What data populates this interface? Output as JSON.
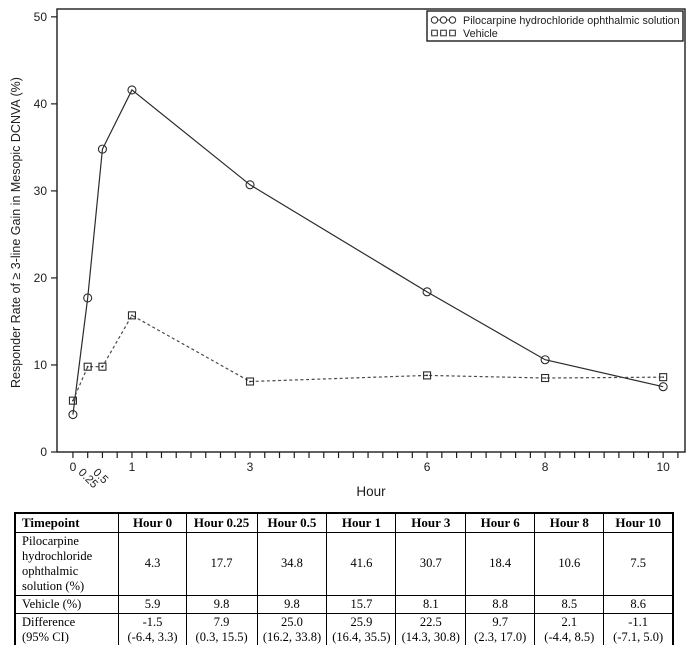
{
  "chart_data": {
    "type": "line",
    "title": "",
    "xlabel": "Hour",
    "ylabel": "Responder Rate of ≥ 3-line Gain in Mesopic DCNVA (%)",
    "x": [
      0,
      0.25,
      0.5,
      1,
      3,
      6,
      8,
      10
    ],
    "series": [
      {
        "name": "Pilocarpine hydrochloride ophthalmic solution",
        "slug": "pilocarpine",
        "marker": "circle",
        "line_style": "solid",
        "color": "#2b2b2b",
        "values": [
          4.3,
          17.7,
          34.8,
          41.6,
          30.7,
          18.4,
          10.6,
          7.5
        ]
      },
      {
        "name": "Vehicle",
        "slug": "vehicle",
        "marker": "square",
        "line_style": "dashed",
        "color": "#4a4a4a",
        "values": [
          5.9,
          9.8,
          9.8,
          15.7,
          8.1,
          8.8,
          8.5,
          8.6
        ]
      }
    ],
    "xlim": [
      -0.27,
      10.37
    ],
    "ylim": [
      0,
      50.9
    ],
    "yticks": [
      0,
      10,
      20,
      30,
      40,
      50
    ],
    "xticks_labeled": [
      0,
      0.25,
      0.5,
      1,
      3,
      6,
      8,
      10
    ],
    "xticks_rotated": [
      0.25,
      0.5
    ],
    "xtick_minor_step": 0.25,
    "xtick_minor_max": 10.25,
    "legend_position": "top-right",
    "grid": false,
    "axis_color": "#1d1d1d"
  },
  "table": {
    "headers": [
      "Timepoint",
      "Hour 0",
      "Hour 0.25",
      "Hour 0.5",
      "Hour 1",
      "Hour 3",
      "Hour 6",
      "Hour 8",
      "Hour 10"
    ],
    "rows": [
      {
        "label": "Pilocarpine hydrochloride ophthalmic solution (%)",
        "values": [
          "4.3",
          "17.7",
          "34.8",
          "41.6",
          "30.7",
          "18.4",
          "10.6",
          "7.5"
        ]
      },
      {
        "label": "Vehicle (%)",
        "values": [
          "5.9",
          "9.8",
          "9.8",
          "15.7",
          "8.1",
          "8.8",
          "8.5",
          "8.6"
        ]
      },
      {
        "label": "Difference\n(95% CI)",
        "values": [
          "-1.5\n(-6.4, 3.3)",
          "7.9\n(0.3, 15.5)",
          "25.0\n(16.2, 33.8)",
          "25.9\n(16.4, 35.5)",
          "22.5\n(14.3, 30.8)",
          "9.7\n(2.3, 17.0)",
          "2.1\n(-4.4, 8.5)",
          "-1.1\n(-7.1, 5.0)"
        ]
      }
    ]
  }
}
